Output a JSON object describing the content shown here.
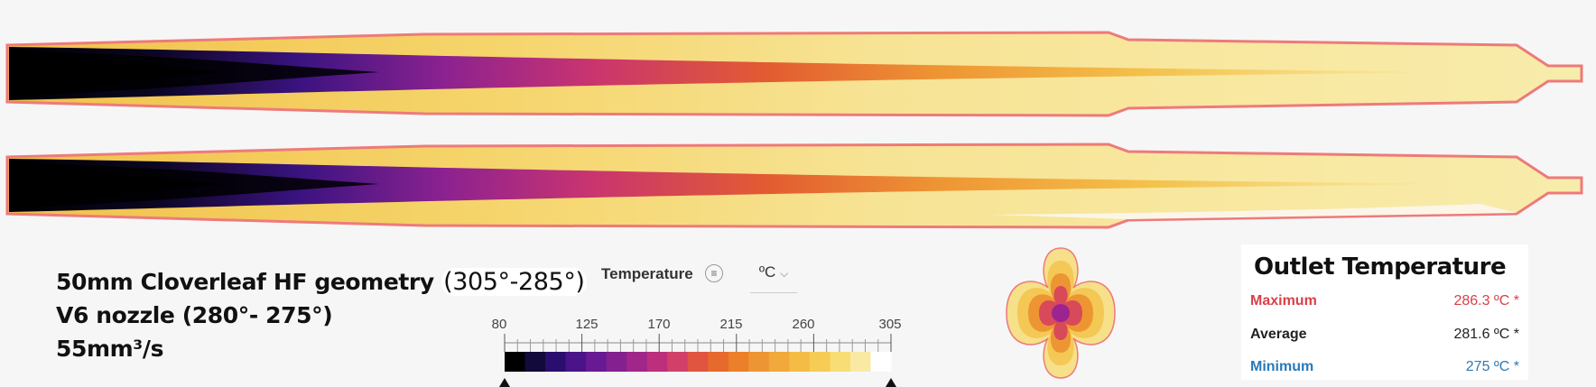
{
  "caption": {
    "line1_prefix": "50mm Cloverleaf HF geometry",
    "line1_highlight": "(305°-285°)",
    "line2": "V6 nozzle (280°- 275°)",
    "line3": "55mm³/s"
  },
  "quantity_selector": {
    "label": "Temperature",
    "menu_icon": "list-icon",
    "unit": "ºC",
    "unit_icon": "chevron-down-icon"
  },
  "color_scale": {
    "tick_labels": [
      "80",
      "125",
      "170",
      "215",
      "260",
      "305"
    ],
    "min": 80,
    "max": 305,
    "colors": [
      "#000000",
      "#120a3a",
      "#2a0e6e",
      "#4a1488",
      "#671a92",
      "#84208f",
      "#a0268a",
      "#bb2f7c",
      "#d2406a",
      "#e05440",
      "#e66a2e",
      "#eb7f2a",
      "#ee9533",
      "#f1a93b",
      "#f4bc45",
      "#f6cc55",
      "#f8dd74",
      "#f9eaa3",
      "#ffffff"
    ]
  },
  "outlet": {
    "title": "Outlet Temperature",
    "rows": [
      {
        "name": "Maximum",
        "value": "286.3 ºC *",
        "color": "#d94048"
      },
      {
        "name": "Average",
        "value": "281.6 ºC *",
        "color": "#222222"
      },
      {
        "name": "Minimum",
        "value": "275 ºC *",
        "color": "#2a7ab8"
      }
    ]
  }
}
